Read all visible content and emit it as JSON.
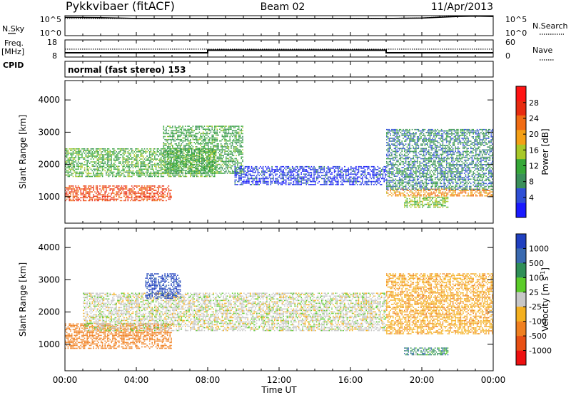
{
  "header": {
    "station": "Pykkvibaer (fitACF)",
    "beam": "Beam 02",
    "date": "11/Apr/2013"
  },
  "chart_data": [
    {
      "type": "line",
      "panel": "noise",
      "left_label": "N.Sky",
      "right_label": "N.Search",
      "left_ticks": [
        "10^5",
        "10^0"
      ],
      "right_ticks": [
        "10^5",
        "10^0"
      ],
      "series": [
        {
          "name": "N.Sky",
          "style": "solid",
          "x": [
            0,
            2,
            4,
            6,
            8,
            10,
            12,
            14,
            16,
            18,
            20,
            21,
            22,
            23,
            24
          ],
          "y": [
            4.6,
            4.5,
            4.3,
            4.3,
            4.3,
            4.3,
            4.3,
            4.3,
            4.3,
            4.3,
            4.4,
            4.6,
            4.8,
            4.9,
            4.8
          ]
        },
        {
          "name": "N.Search",
          "style": "dotted",
          "x": [
            0,
            4,
            8,
            12,
            16,
            20,
            21,
            22,
            23,
            24
          ],
          "y": [
            4.3,
            4.3,
            4.3,
            4.3,
            4.3,
            4.4,
            4.7,
            4.9,
            5.0,
            4.9
          ]
        }
      ]
    },
    {
      "type": "line",
      "panel": "frequency",
      "left_label": "Freq.",
      "left_unit": "[MHz]",
      "cpid_label": "CPID",
      "right_label": "Nave",
      "left_ticks": [
        "18",
        "8"
      ],
      "right_ticks": [
        "60",
        "0"
      ],
      "ylim": [
        8,
        18
      ],
      "series": [
        {
          "name": "Freq.",
          "style": "solid",
          "x": [
            0,
            8,
            8,
            18,
            18,
            24
          ],
          "y": [
            10.5,
            10.5,
            12.0,
            12.0,
            10.5,
            10.5
          ]
        },
        {
          "name": "Nave",
          "style": "dotted",
          "x": [
            0,
            24
          ],
          "y": [
            12.6,
            12.6
          ]
        }
      ]
    },
    {
      "type": "table",
      "panel": "cpid",
      "text": "normal (fast stereo) 153"
    },
    {
      "type": "heatmap",
      "panel": "power",
      "ylabel": "Slant Range [km]",
      "yticks": [
        1000,
        2000,
        3000,
        4000
      ],
      "ylim": [
        180,
        4600
      ],
      "colorbar_label": "Power [dB]",
      "colorbar_ticks": [
        4,
        8,
        12,
        16,
        20,
        24,
        28
      ],
      "colorbar_colors": [
        "#1a1aff",
        "#2f4fd6",
        "#3a8f5a",
        "#36a838",
        "#a8c828",
        "#f4a016",
        "#f06c14",
        "#e82c10",
        "#ff1414"
      ],
      "features": [
        {
          "from_h": 0.0,
          "to_h": 6.0,
          "range_km": [
            850,
            1350
          ],
          "value_db": 26
        },
        {
          "from_h": 0.0,
          "to_h": 8.5,
          "range_km": [
            1600,
            2500
          ],
          "value_db": 14
        },
        {
          "from_h": 5.5,
          "to_h": 10.0,
          "range_km": [
            1700,
            3200
          ],
          "value_db": 13
        },
        {
          "from_h": 9.5,
          "to_h": 18.0,
          "range_km": [
            1350,
            1950
          ],
          "value_db": 6
        },
        {
          "from_h": 18.0,
          "to_h": 24.0,
          "range_km": [
            1000,
            1250
          ],
          "value_db": 22
        },
        {
          "from_h": 18.0,
          "to_h": 24.0,
          "range_km": [
            1200,
            3100
          ],
          "value_db": 10
        },
        {
          "from_h": 19.0,
          "to_h": 21.5,
          "range_km": [
            650,
            1000
          ],
          "value_db": 16
        }
      ]
    },
    {
      "type": "heatmap",
      "panel": "velocity",
      "ylabel": "Slant Range [km]",
      "yticks": [
        1000,
        2000,
        3000,
        4000
      ],
      "ylim": [
        180,
        4600
      ],
      "colorbar_label": "Velocity [m s",
      "colorbar_unit_exp": "-1",
      "colorbar_label_end": "]",
      "colorbar_ticks": [
        1000,
        500,
        100,
        25,
        -25,
        -100,
        -500,
        -1000
      ],
      "colorbar_colors": [
        "#2040c0",
        "#3a6ab0",
        "#2f8f58",
        "#5ccc2a",
        "#c8c8c8",
        "#f4b020",
        "#f08020",
        "#e85014",
        "#ee1010"
      ],
      "features": [
        {
          "from_h": 0.0,
          "to_h": 6.0,
          "range_km": [
            850,
            1650
          ],
          "value_ms": -300
        },
        {
          "from_h": 1.0,
          "to_h": 18.0,
          "range_km": [
            1400,
            2600
          ],
          "value_ms": 0
        },
        {
          "from_h": 4.5,
          "to_h": 6.5,
          "range_km": [
            2400,
            3200
          ],
          "value_ms": 800
        },
        {
          "from_h": 18.0,
          "to_h": 24.0,
          "range_km": [
            1300,
            3200
          ],
          "value_ms": -80
        },
        {
          "from_h": 19.0,
          "to_h": 21.5,
          "range_km": [
            650,
            900
          ],
          "value_ms": 200
        }
      ]
    }
  ],
  "x_axis": {
    "ticks": [
      "00:00",
      "04:00",
      "08:00",
      "12:00",
      "16:00",
      "20:00",
      "00:00"
    ],
    "label": "Time UT",
    "range_h": [
      0,
      24
    ]
  }
}
